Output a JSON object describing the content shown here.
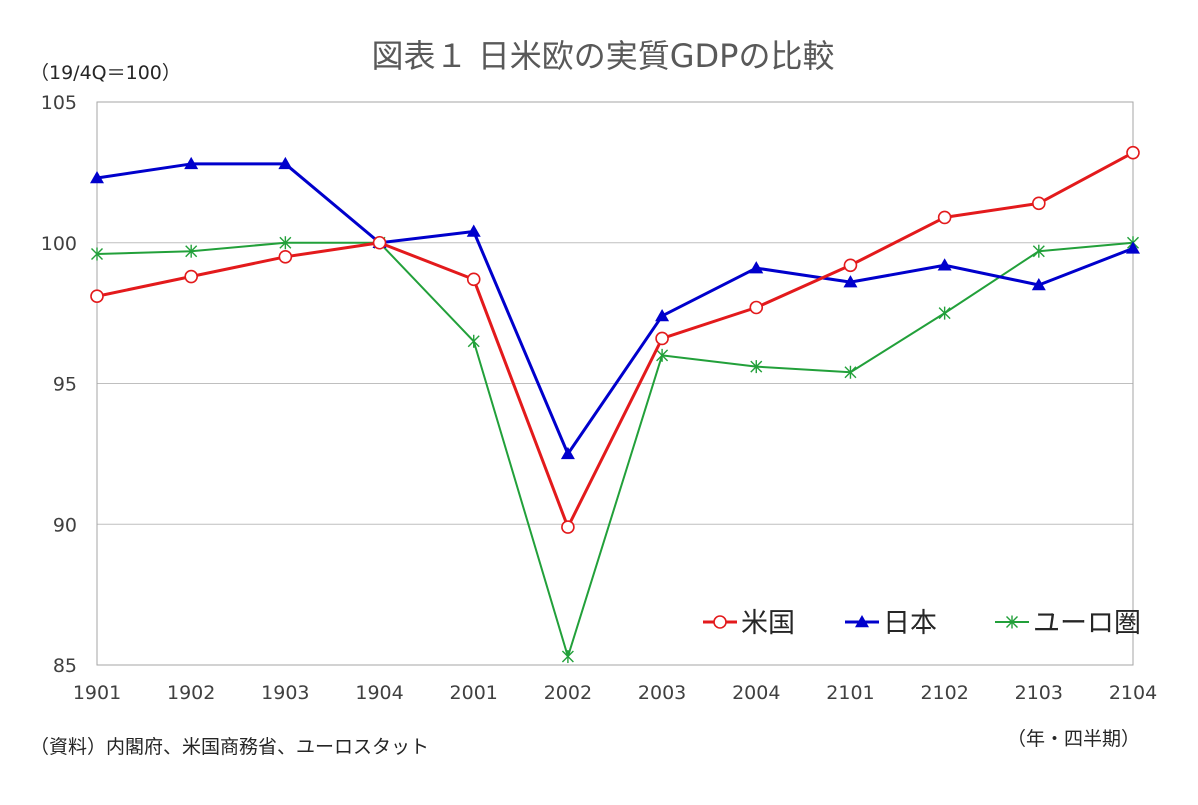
{
  "chart_data": {
    "type": "line",
    "title": "図表１ 日米欧の実質GDPの比較",
    "unit_label": "（19/4Q＝100）",
    "xlabel": "（年・四半期）",
    "source": "（資料）内閣府、米国商務省、ユーロスタット",
    "categories": [
      "1901",
      "1902",
      "1903",
      "1904",
      "2001",
      "2002",
      "2003",
      "2004",
      "2101",
      "2102",
      "2103",
      "2104"
    ],
    "ylim": [
      85,
      105
    ],
    "yticks": [
      "85",
      "90",
      "95",
      "100",
      "105"
    ],
    "grid": true,
    "legend_position": "bottom-right",
    "series": [
      {
        "name": "米国",
        "color": "#e31a1c",
        "marker": "circle",
        "values": [
          98.1,
          98.8,
          99.5,
          100.0,
          98.7,
          89.9,
          96.6,
          97.7,
          99.2,
          100.9,
          101.4,
          103.2
        ]
      },
      {
        "name": "日本",
        "color": "#0000cc",
        "marker": "triangle",
        "values": [
          102.3,
          102.8,
          102.8,
          100.0,
          100.4,
          92.5,
          97.4,
          99.1,
          98.6,
          99.2,
          98.5,
          99.8
        ]
      },
      {
        "name": "ユーロ圏",
        "color": "#22a03a",
        "marker": "asterisk",
        "values": [
          99.6,
          99.7,
          100.0,
          100.0,
          96.5,
          85.3,
          96.0,
          95.6,
          95.4,
          97.5,
          99.7,
          100.0
        ]
      }
    ]
  }
}
